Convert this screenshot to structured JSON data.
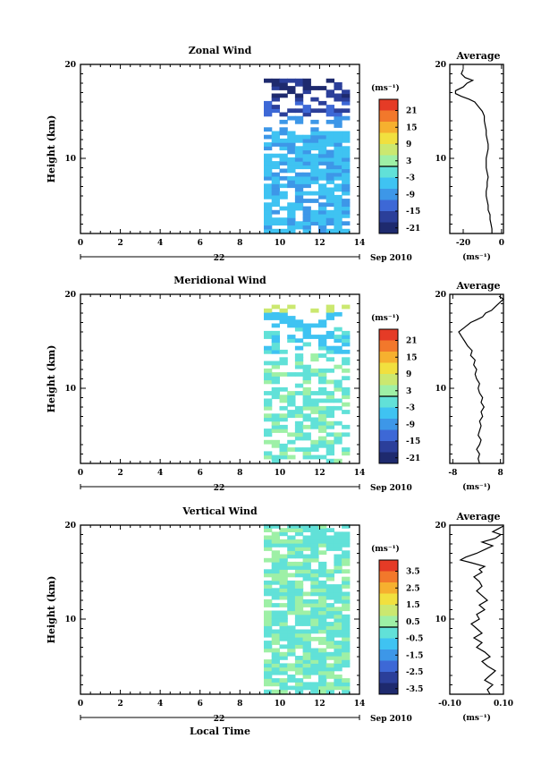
{
  "chart_data": [
    {
      "type": "heatmap",
      "title": "Zonal Wind",
      "ylabel": "Height (km)",
      "units": "(ms⁻¹)",
      "x_ticks": [
        "0",
        "2",
        "4",
        "6",
        "8",
        "10",
        "12",
        "14"
      ],
      "y_ticks": [
        "10",
        "20"
      ],
      "xlim": [
        0,
        14
      ],
      "ylim": [
        2,
        20
      ],
      "date_day": "22",
      "date_month": "Sep 2010",
      "colorbar": {
        "ticks": [
          "21",
          "15",
          "9",
          "3",
          "-3",
          "-9",
          "-15",
          "-21"
        ],
        "range": [
          -24,
          24
        ]
      },
      "data_range": {
        "x": [
          9.2,
          13.5
        ],
        "y": [
          2.1,
          18.5
        ]
      },
      "profile": {
        "title": "Average",
        "xlabel": "(ms⁻¹)",
        "x_ticks": [
          "-20",
          "0"
        ],
        "y_ticks": [
          "10",
          "20"
        ],
        "xlim": [
          -27,
          1
        ],
        "x": [
          -5,
          -5,
          -5.5,
          -6,
          -6,
          -7,
          -7,
          -7.5,
          -8,
          -8,
          -7.5,
          -7.5,
          -7,
          -7.5,
          -8,
          -8,
          -8,
          -7.5,
          -7,
          -7,
          -7.5,
          -8,
          -8,
          -8.5,
          -9,
          -9,
          -10,
          -12,
          -14,
          -17,
          -21,
          -24,
          -24,
          -20,
          -18,
          -15,
          -19,
          -21,
          -20
        ],
        "y": [
          2,
          2.5,
          3,
          3.5,
          4,
          4.5,
          5,
          5.5,
          6,
          6.5,
          7,
          7.5,
          8,
          8.5,
          9,
          9.5,
          10,
          10.5,
          11,
          11.5,
          12,
          12.5,
          13,
          13.5,
          14,
          14.5,
          15,
          15.5,
          16,
          16.3,
          16.6,
          16.9,
          17.2,
          17.6,
          18,
          18.3,
          18.6,
          19,
          19.5
        ]
      }
    },
    {
      "type": "heatmap",
      "title": "Meridional Wind",
      "ylabel": "Height (km)",
      "units": "(ms⁻¹)",
      "x_ticks": [
        "0",
        "2",
        "4",
        "6",
        "8",
        "10",
        "12",
        "14"
      ],
      "y_ticks": [
        "10",
        "20"
      ],
      "xlim": [
        0,
        14
      ],
      "ylim": [
        2,
        20
      ],
      "date_day": "22",
      "date_month": "Sep 2010",
      "colorbar": {
        "ticks": [
          "21",
          "15",
          "9",
          "3",
          "-3",
          "-9",
          "-15",
          "-21"
        ],
        "range": [
          -24,
          24
        ]
      },
      "data_range": {
        "x": [
          9.2,
          13.5
        ],
        "y": [
          2.1,
          18.8
        ]
      },
      "profile": {
        "title": "Average",
        "xlabel": "(ms⁻¹)",
        "x_ticks": [
          "-8",
          "8"
        ],
        "y_ticks": [
          "10",
          "20"
        ],
        "xlim": [
          -9,
          9
        ],
        "x": [
          1,
          0.5,
          1,
          0,
          1,
          1.5,
          0.5,
          1,
          1.5,
          1,
          2,
          1.5,
          2.5,
          1.5,
          2,
          1,
          0.5,
          1,
          0,
          -0.5,
          0,
          -1,
          -0.5,
          -2,
          -1.5,
          -3,
          -4,
          -5,
          -6,
          -4,
          -2,
          0,
          2,
          3,
          5,
          6,
          7,
          8,
          9,
          7.5
        ],
        "y": [
          2,
          2.5,
          3,
          3.5,
          4,
          4.5,
          5,
          5.5,
          6,
          6.5,
          7,
          7.5,
          8,
          8.5,
          9,
          9.5,
          10,
          10.5,
          11,
          11.5,
          12,
          12.5,
          13,
          13.5,
          14,
          14.5,
          15,
          15.5,
          16,
          16.5,
          17,
          17.3,
          17.6,
          18,
          18.3,
          18.6,
          18.9,
          19.2,
          19.5,
          19.8
        ]
      }
    },
    {
      "type": "heatmap",
      "title": "Vertical Wind",
      "ylabel": "Height (km)",
      "xlabel": "Local Time",
      "units": "(ms⁻¹)",
      "x_ticks": [
        "0",
        "2",
        "4",
        "6",
        "8",
        "10",
        "12",
        "14"
      ],
      "y_ticks": [
        "10",
        "20"
      ],
      "xlim": [
        0,
        14
      ],
      "ylim": [
        2,
        20
      ],
      "date_day": "22",
      "date_month": "Sep 2010",
      "colorbar": {
        "ticks": [
          "3.5",
          "2.5",
          "1.5",
          "0.5",
          "-0.5",
          "-1.5",
          "-2.5",
          "-3.5"
        ],
        "range": [
          -4,
          4
        ]
      },
      "data_range": {
        "x": [
          9.2,
          13.5
        ],
        "y": [
          2.1,
          20
        ]
      },
      "profile": {
        "title": "Average",
        "xlabel": "(ms⁻¹)",
        "x_ticks": [
          "-0.10",
          "0.10"
        ],
        "y_ticks": [
          "10",
          "20"
        ],
        "xlim": [
          -0.1,
          0.1
        ],
        "x": [
          0.05,
          0.04,
          0.06,
          0.03,
          0.05,
          0.07,
          0.04,
          0.02,
          0.05,
          0.03,
          0.0,
          0.02,
          -0.01,
          0.02,
          0.0,
          -0.02,
          0.01,
          0.0,
          0.03,
          0.01,
          0.04,
          0.02,
          0.0,
          0.02,
          0.01,
          -0.01,
          0.02,
          0.01,
          0.03,
          -0.02,
          -0.06,
          -0.04,
          0.0,
          0.03,
          0.06,
          0.02,
          0.07,
          0.09,
          0.06,
          0.08,
          0.1
        ],
        "y": [
          2,
          2.5,
          3,
          3.5,
          4,
          4.5,
          5,
          5.5,
          6,
          6.5,
          7,
          7.5,
          8,
          8.5,
          9,
          9.5,
          10,
          10.5,
          11,
          11.5,
          12,
          12.5,
          13,
          13.5,
          14,
          14.5,
          15,
          15.3,
          15.6,
          16,
          16.3,
          16.6,
          17,
          17.4,
          17.8,
          18.2,
          18.6,
          19,
          19.3,
          19.6,
          19.9
        ]
      }
    }
  ],
  "colors": {
    "palette": [
      "#1e2a6e",
      "#2b3f9a",
      "#3d68d6",
      "#3d97e8",
      "#3fc3f2",
      "#61e1d8",
      "#9ef0a6",
      "#cbe870",
      "#f1e03f",
      "#f6b02f",
      "#f2782b",
      "#e53b26"
    ],
    "bar_colors": [
      "#e53b26",
      "#f2782b",
      "#f6b02f",
      "#f1e03f",
      "#cbe870",
      "#9ef0a6",
      "#61e1d8",
      "#3fc3f2",
      "#3d97e8",
      "#3d68d6",
      "#2b3f9a",
      "#1e2a6e"
    ]
  }
}
